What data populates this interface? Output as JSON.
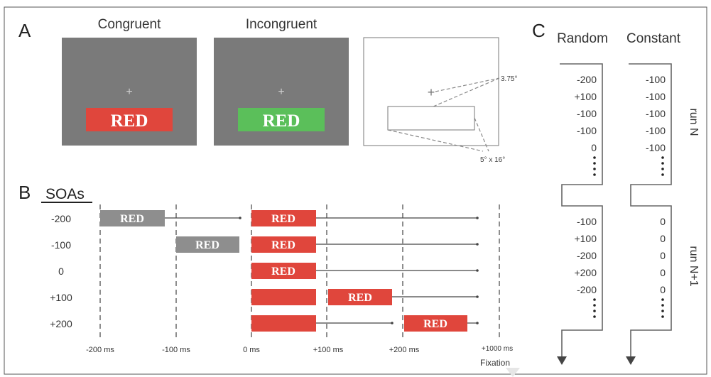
{
  "panel_a": {
    "letter": "A",
    "congruent": {
      "title": "Congruent",
      "cross": "+",
      "word": "RED",
      "word_color": "#e0463c"
    },
    "incongruent": {
      "title": "Incongruent",
      "cross": "+",
      "word": "RED",
      "word_color": "#5bbf5a"
    },
    "geometry": {
      "cross": "+",
      "angle_label": "3.75°",
      "size_label": "5° x 16°"
    },
    "screen_color": "#7a7a7a"
  },
  "panel_b": {
    "letter": "B",
    "title": "SOAs",
    "soa_labels": [
      "-200",
      "-100",
      "0",
      "+100",
      "+200"
    ],
    "time_labels": [
      "-200 ms",
      "-100 ms",
      "0 ms",
      "+100 ms",
      "+200 ms",
      "+1000 ms"
    ],
    "fixation_label": "Fixation",
    "word": "RED",
    "colors": {
      "distractor": "#8e8e8e",
      "target": "#e0463c"
    }
  },
  "panel_c": {
    "letter": "C",
    "col_random": "Random",
    "col_constant": "Constant",
    "run_n": "run N",
    "run_n1": "run N+1",
    "random_run_n": [
      "-200",
      "+100",
      "-100",
      "-100",
      "0"
    ],
    "constant_run_n": [
      "-100",
      "-100",
      "-100",
      "-100",
      "-100"
    ],
    "random_run_n1": [
      "-100",
      "+100",
      "-200",
      "+200",
      "-200"
    ],
    "constant_run_n1": [
      "0",
      "0",
      "0",
      "0",
      "0"
    ]
  }
}
